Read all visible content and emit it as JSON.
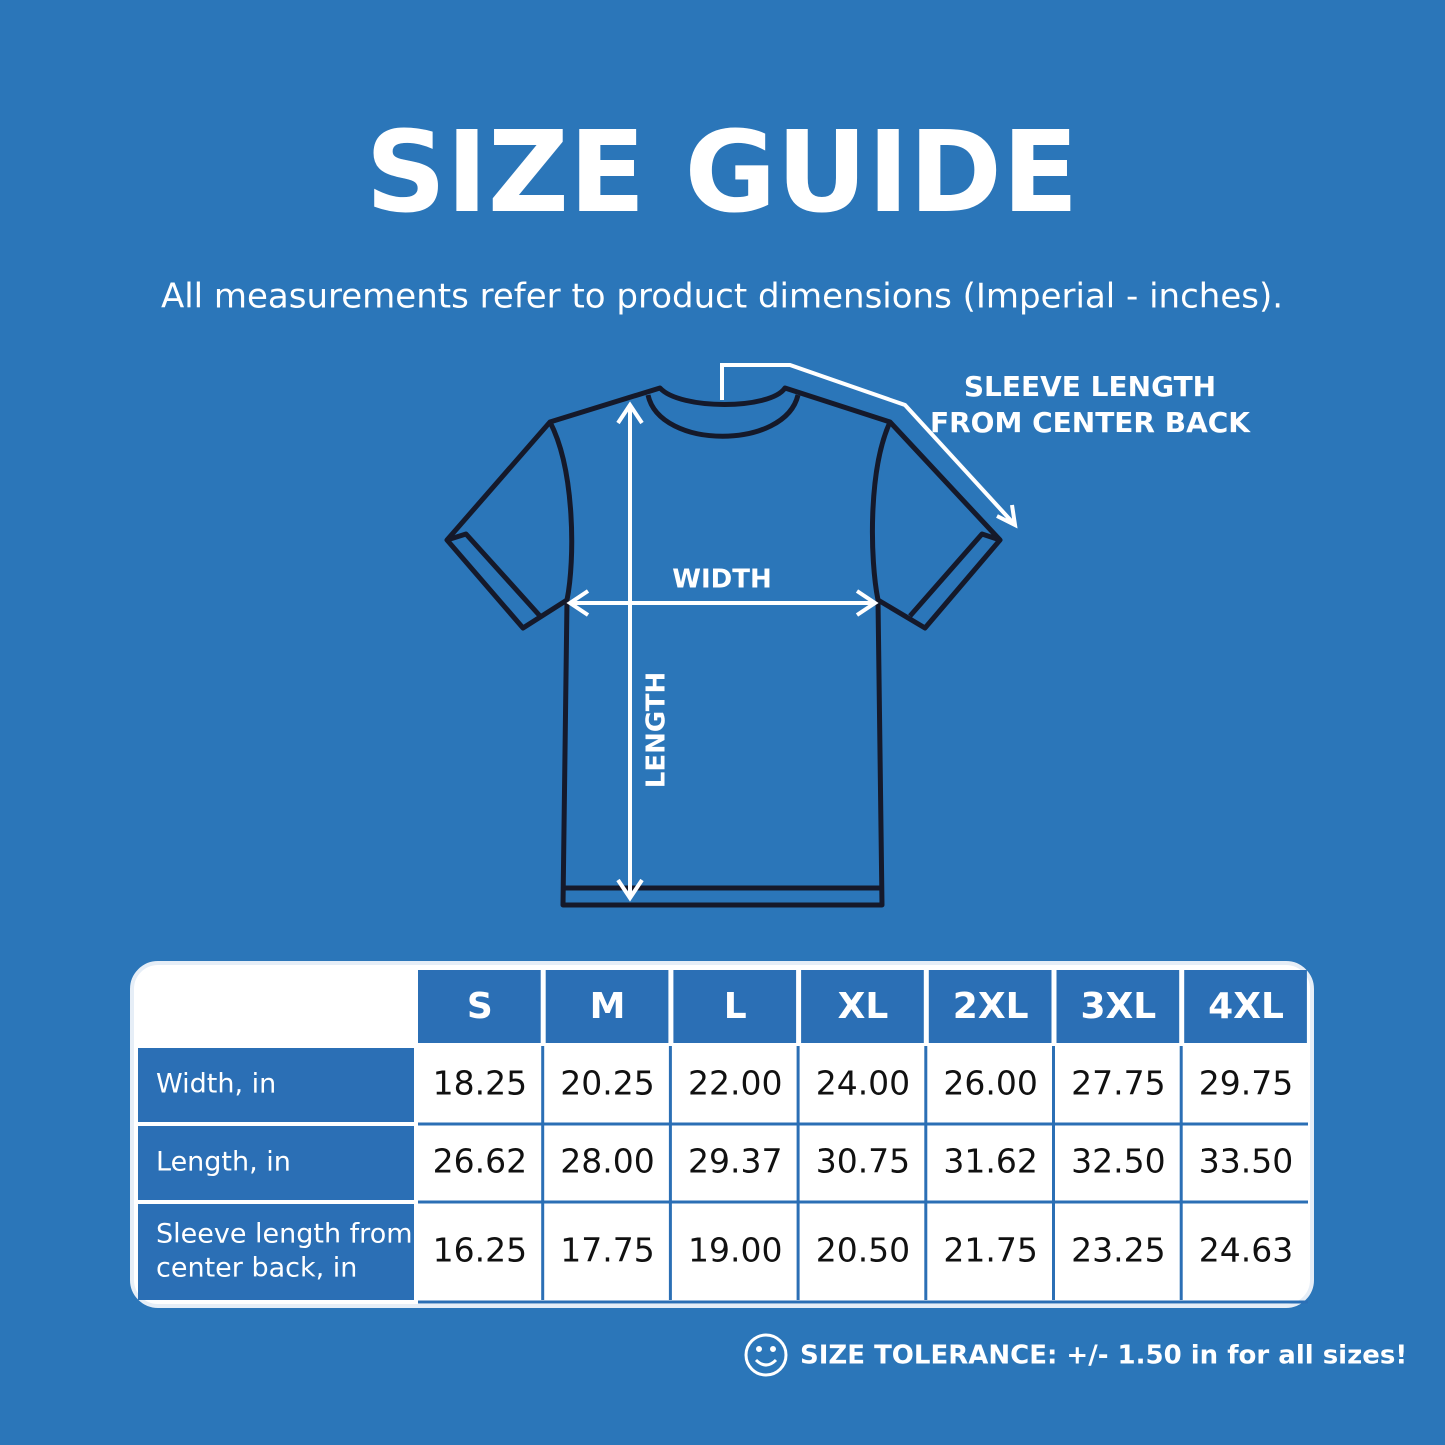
{
  "header": {
    "title": "SIZE GUIDE",
    "subtitle": "All measurements refer to product dimensions (Imperial - inches)."
  },
  "diagram": {
    "sleeve_label": [
      "SLEEVE LENGTH",
      "FROM CENTER BACK"
    ],
    "width_label": "WIDTH",
    "length_label": "LENGTH"
  },
  "table": {
    "columns": [
      "S",
      "M",
      "L",
      "XL",
      "2XL",
      "3XL",
      "4XL"
    ],
    "rows": [
      {
        "label": "Width, in",
        "values": [
          "18.25",
          "20.25",
          "22.00",
          "24.00",
          "26.00",
          "27.75",
          "29.75"
        ]
      },
      {
        "label": "Length, in",
        "values": [
          "26.62",
          "28.00",
          "29.37",
          "30.75",
          "31.62",
          "32.50",
          "33.50"
        ]
      },
      {
        "label": [
          "Sleeve length from",
          "center back, in"
        ],
        "values": [
          "16.25",
          "17.75",
          "19.00",
          "20.50",
          "21.75",
          "23.25",
          "24.63"
        ]
      }
    ]
  },
  "footer": {
    "note": "SIZE TOLERANCE: +/- 1.50 in for all sizes!"
  }
}
